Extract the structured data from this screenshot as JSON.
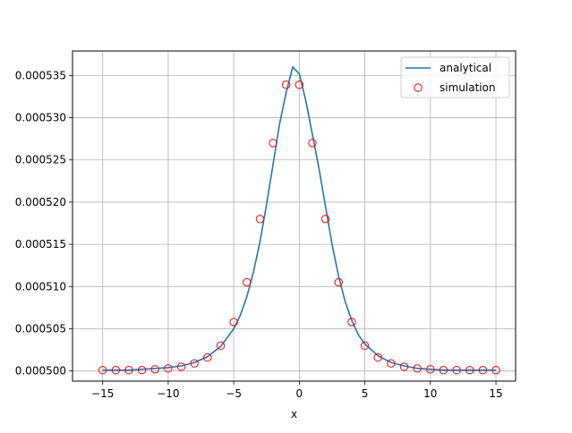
{
  "chart_data": {
    "type": "line",
    "title": "",
    "xlabel": "x",
    "ylabel": "",
    "xlim": [
      -17.3,
      16.5
    ],
    "ylim": [
      0.0004988,
      0.0005379
    ],
    "grid": true,
    "legend_position": "top-right",
    "x_ticks": [
      -15,
      -10,
      -5,
      0,
      5,
      10,
      15
    ],
    "x_tick_labels": [
      "−15",
      "−10",
      "−5",
      "0",
      "5",
      "10",
      "15"
    ],
    "y_ticks": [
      0.0005,
      0.000505,
      0.00051,
      0.000515,
      0.00052,
      0.000525,
      0.00053,
      0.000535
    ],
    "y_tick_labels": [
      "0.000500",
      "0.000505",
      "0.000510",
      "0.000515",
      "0.000520",
      "0.000525",
      "0.000530",
      "0.000535"
    ],
    "colors": {
      "analytical": "#1f77b4",
      "simulation": "#ff0000",
      "grid": "#b0b0b0"
    },
    "series": [
      {
        "name": "analytical",
        "kind": "line",
        "x": [
          -15,
          -14,
          -13,
          -12,
          -11,
          -10,
          -9,
          -8,
          -7,
          -6,
          -5,
          -4.5,
          -4,
          -3.5,
          -3,
          -2.5,
          -2,
          -1.5,
          -1,
          -0.5,
          0,
          0.5,
          1,
          1.5,
          2,
          2.5,
          3,
          3.5,
          4,
          4.5,
          5,
          6,
          7,
          8,
          9,
          10,
          11,
          12,
          13,
          14,
          15
        ],
        "y": [
          0.0005001,
          0.0005001,
          0.0005001,
          0.0005002,
          0.0005003,
          0.0005004,
          0.0005006,
          0.000501,
          0.0005017,
          0.0005029,
          0.000505,
          0.0005066,
          0.0005088,
          0.0005117,
          0.0005153,
          0.0005197,
          0.0005245,
          0.0005293,
          0.000533,
          0.000536,
          0.0005352,
          0.000532,
          0.000528,
          0.000524,
          0.0005195,
          0.000515,
          0.0005112,
          0.0005082,
          0.000506,
          0.0005043,
          0.0005032,
          0.0005018,
          0.000501,
          0.0005006,
          0.0005003,
          0.0005002,
          0.0005001,
          0.0005001,
          0.0005001,
          0.0005001,
          0.0005001
        ]
      },
      {
        "name": "simulation",
        "kind": "scatter",
        "x": [
          -15,
          -14,
          -13,
          -12,
          -11,
          -10,
          -9,
          -8,
          -7,
          -6,
          -5,
          -4,
          -3,
          -2,
          -1,
          0,
          1,
          2,
          3,
          4,
          5,
          6,
          7,
          8,
          9,
          10,
          11,
          12,
          13,
          14,
          15
        ],
        "y": [
          0.0005001,
          0.0005001,
          0.0005001,
          0.0005001,
          0.0005002,
          0.0005003,
          0.0005005,
          0.0005009,
          0.0005016,
          0.000503,
          0.0005058,
          0.0005105,
          0.000518,
          0.000527,
          0.0005339,
          0.0005339,
          0.000527,
          0.000518,
          0.0005105,
          0.0005058,
          0.000503,
          0.0005016,
          0.0005009,
          0.0005005,
          0.0005003,
          0.0005002,
          0.0005001,
          0.0005001,
          0.0005001,
          0.0005001,
          0.0005001
        ]
      }
    ]
  }
}
